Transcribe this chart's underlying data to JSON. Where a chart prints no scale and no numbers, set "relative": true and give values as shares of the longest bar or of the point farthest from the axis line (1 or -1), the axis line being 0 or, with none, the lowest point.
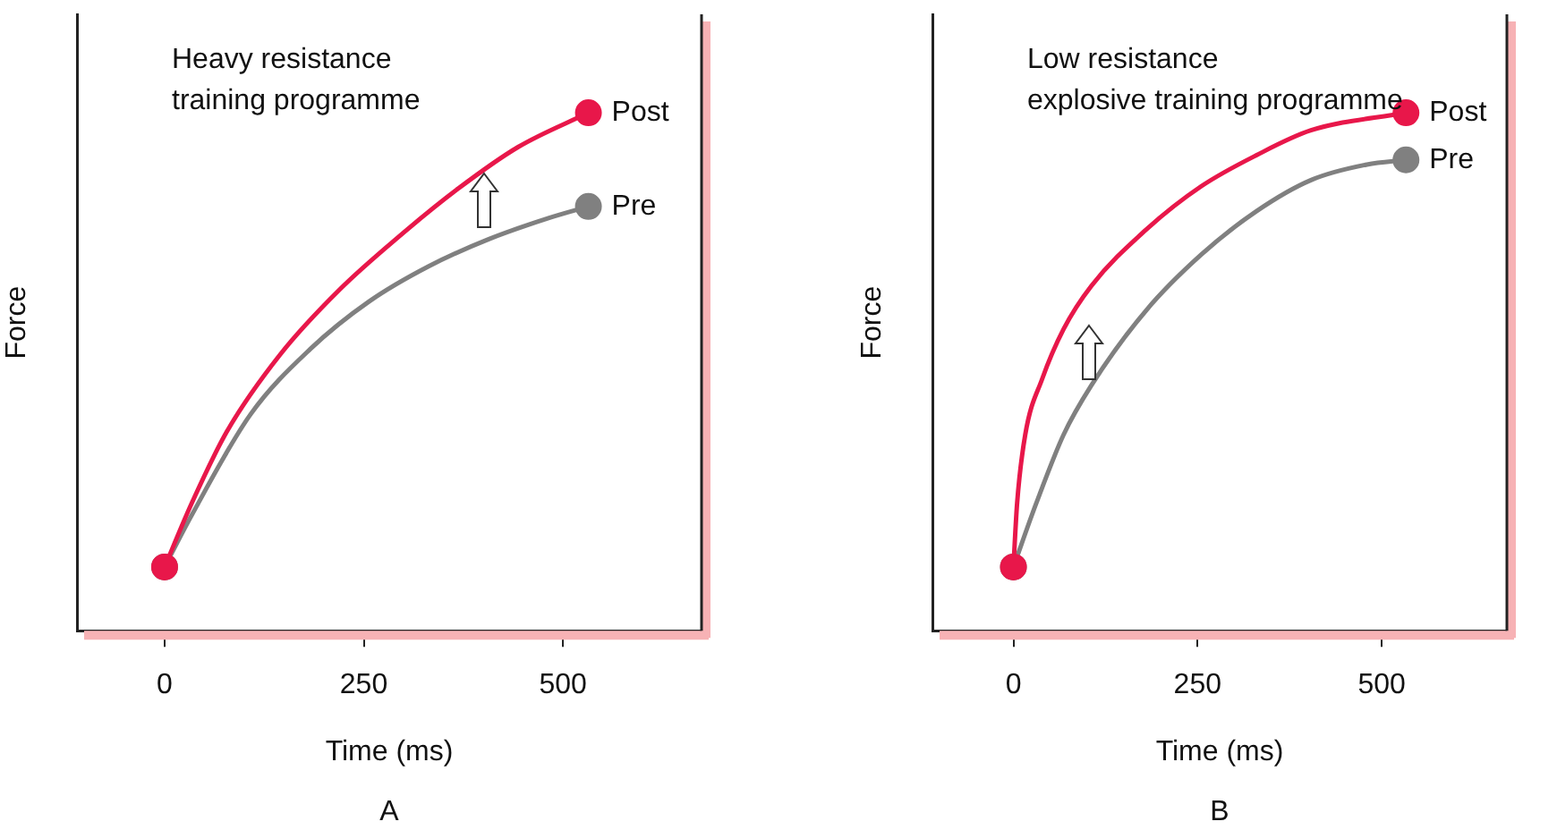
{
  "chart_data": [
    {
      "type": "line",
      "title": "Heavy resistance\ntraining programme",
      "xlabel": "Time (ms)",
      "ylabel": "Force",
      "annotations": [
        "A"
      ],
      "relative": true,
      "xlim": [
        -110,
        674
      ],
      "xticks": [
        0,
        250,
        500
      ],
      "tick_labels": "x",
      "grid": false,
      "legend": false,
      "line_style": "solid",
      "series": [
        {
          "name": "Post",
          "color": "#e8174a",
          "x": [
            0,
            34,
            78,
            145,
            220,
            295,
            369,
            444,
            532
          ],
          "values": [
            0.123,
            0.246,
            0.384,
            0.533,
            0.659,
            0.762,
            0.854,
            0.934,
            1
          ]
        },
        {
          "name": "Pre",
          "color": "#808080",
          "x": [
            0,
            34,
            108,
            183,
            257,
            332,
            407,
            481,
            532
          ],
          "values": [
            0.123,
            0.223,
            0.418,
            0.544,
            0.636,
            0.704,
            0.756,
            0.796,
            0.819
          ]
        }
      ]
    },
    {
      "type": "line",
      "title": "Low resistance\nexplosive training programme",
      "xlabel": "Time (ms)",
      "ylabel": "Force",
      "annotations": [
        "B"
      ],
      "relative": true,
      "xlim": [
        -110,
        670
      ],
      "xticks": [
        0,
        250,
        500
      ],
      "tick_labels": "x",
      "grid": false,
      "legend": false,
      "line_style": "solid",
      "series": [
        {
          "name": "Post",
          "color": "#e8174a",
          "x": [
            0,
            5,
            16,
            39,
            68,
            106,
            180,
            255,
            330,
            404,
            533
          ],
          "values": [
            0.123,
            0.246,
            0.378,
            0.486,
            0.582,
            0.666,
            0.774,
            0.858,
            0.918,
            0.966,
            1
          ]
        },
        {
          "name": "Pre",
          "color": "#808080",
          "x": [
            0,
            31,
            68,
            106,
            180,
            255,
            330,
            404,
            480,
            533
          ],
          "values": [
            0.123,
            0.246,
            0.378,
            0.474,
            0.618,
            0.726,
            0.81,
            0.87,
            0.9,
            0.909
          ]
        }
      ]
    }
  ]
}
